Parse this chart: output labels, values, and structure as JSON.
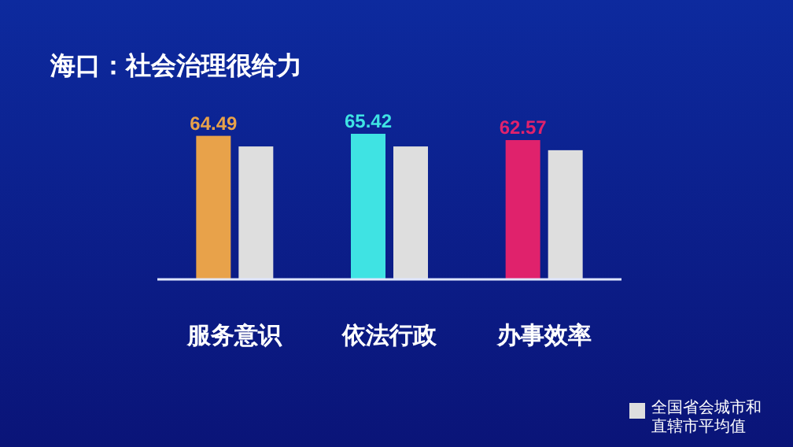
{
  "chart_data": {
    "type": "bar",
    "title": "海口：社会治理很给力",
    "categories": [
      "服务意识",
      "依法行政",
      "办事效率"
    ],
    "series": [
      {
        "colors": [
          "#e8a24a",
          "#3fe3e3",
          "#e0226c"
        ],
        "values": [
          64.49,
          65.42,
          62.57
        ],
        "value_labels": [
          "64.49",
          "65.42",
          "62.57"
        ]
      },
      {
        "name": "全国省会城市和直辖市平均值",
        "color": "#dedede",
        "values": [
          59.7,
          59.7,
          58.0
        ]
      }
    ],
    "relative": false,
    "legend": "bottom right"
  }
}
